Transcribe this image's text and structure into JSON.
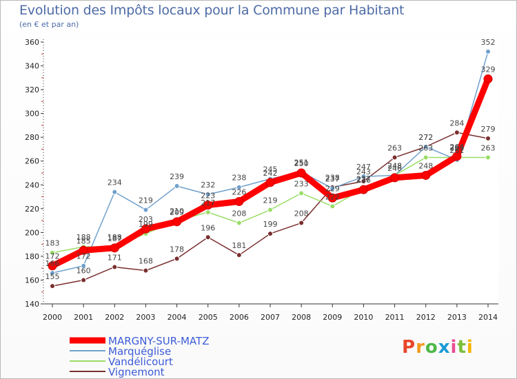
{
  "header": {
    "title": "Evolution des Impôts locaux pour la Commune par Habitant",
    "subtitle": "(en € et par an)"
  },
  "logo": {
    "text": "Proxiti",
    "colors": [
      "#e8462a",
      "#f29a1f",
      "#4fb848",
      "#1c9ad6",
      "#e94e96",
      "#7bbf3a",
      "#f5b400"
    ]
  },
  "chart_data": {
    "type": "line",
    "title": "Evolution des Impôts locaux pour la Commune par Habitant",
    "subtitle": "(en € et par an)",
    "xlabel": "",
    "ylabel": "",
    "x": [
      "2000",
      "2001",
      "2002",
      "2003",
      "2004",
      "2005",
      "2006",
      "2007",
      "2008",
      "2009",
      "2010",
      "2011",
      "2012",
      "2013",
      "2014"
    ],
    "ylim": [
      140,
      360
    ],
    "yticks": [
      140,
      160,
      180,
      200,
      220,
      240,
      260,
      280,
      300,
      320,
      340,
      360
    ],
    "grid": false,
    "legend_position": "bottom-left",
    "series": [
      {
        "name": "MARGNY-SUR-MATZ",
        "color": "#ff0000",
        "values": [
          172,
          185,
          187,
          203,
          209,
          223,
          226,
          242,
          250,
          229,
          236,
          246,
          248,
          264,
          329
        ],
        "labels": [
          172,
          185,
          187,
          203,
          209,
          223,
          226,
          242,
          250,
          229,
          236,
          246,
          248,
          264,
          329
        ]
      },
      {
        "name": "Marquéglise",
        "color": "#6fa0cc",
        "values": [
          166,
          172,
          234,
          219,
          239,
          232,
          238,
          245,
          251,
          237,
          247,
          248,
          272,
          261,
          352
        ],
        "labels": [
          166,
          172,
          234,
          219,
          239,
          232,
          238,
          245,
          251,
          237,
          247,
          248,
          272,
          261,
          352
        ]
      },
      {
        "name": "Vandélicourt",
        "color": "#99dd66",
        "values": [
          183,
          188,
          188,
          199,
          210,
          217,
          208,
          219,
          233,
          222,
          237,
          248,
          263,
          263,
          263
        ],
        "labels": [
          183,
          188,
          188,
          199,
          210,
          217,
          208,
          219,
          233,
          222,
          237,
          248,
          263,
          263,
          263
        ]
      },
      {
        "name": "Vignemont",
        "color": "#7a2e2e",
        "values": [
          155,
          160,
          171,
          168,
          178,
          196,
          181,
          199,
          208,
          238,
          243,
          263,
          272,
          284,
          279
        ],
        "labels": [
          155,
          160,
          171,
          168,
          178,
          196,
          181,
          199,
          208,
          238,
          243,
          263,
          272,
          284,
          279
        ]
      }
    ]
  }
}
